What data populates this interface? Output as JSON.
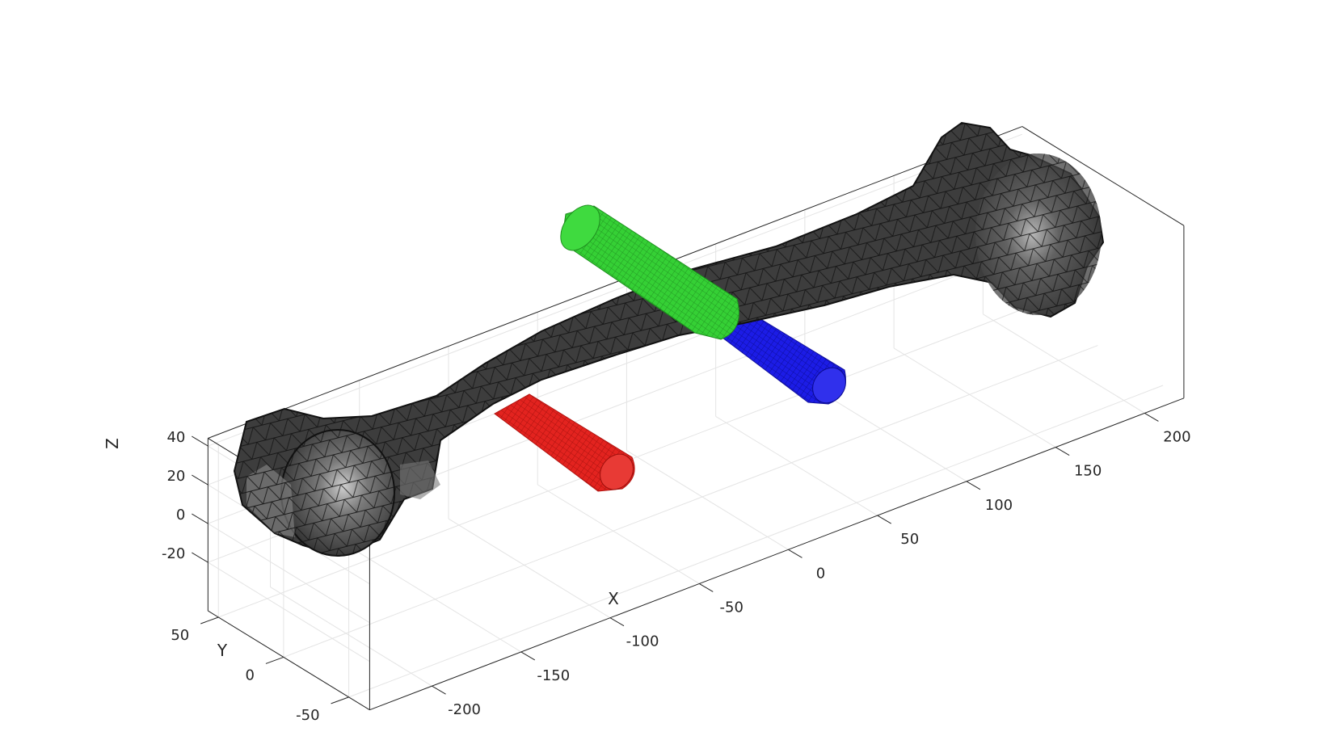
{
  "chart_data": {
    "type": "3d-mesh",
    "title": "",
    "xlabel": "X",
    "ylabel": "Y",
    "zlabel": "Z",
    "x_ticks": [
      -200,
      -150,
      -100,
      -50,
      0,
      50,
      100,
      150,
      200
    ],
    "y_ticks": [
      -50,
      0,
      50
    ],
    "z_ticks": [
      -20,
      0,
      20,
      40
    ],
    "grid": true,
    "box": true,
    "objects": [
      {
        "name": "bone surface mesh",
        "color": "#404040",
        "edge_color": "#000000"
      },
      {
        "name": "cylinder red",
        "color": "#e0231f",
        "start": [
          -100,
          -10,
          -5
        ],
        "end": [
          -70,
          -75,
          -5
        ]
      },
      {
        "name": "cylinder blue",
        "color": "#1a1ae6",
        "start": [
          10,
          40,
          5
        ],
        "end": [
          45,
          -25,
          5
        ]
      },
      {
        "name": "cylinder green",
        "color": "#33cc33",
        "start": [
          -40,
          70,
          20
        ],
        "end": [
          5,
          0,
          20
        ]
      }
    ]
  }
}
